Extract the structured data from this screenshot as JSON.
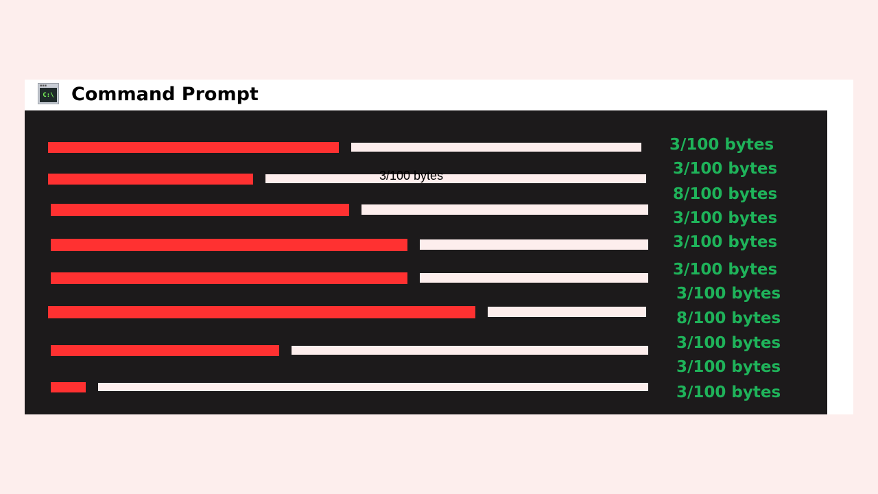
{
  "window": {
    "title": "Command Prompt",
    "icon_text": "C:\\",
    "icon": "terminal-icon"
  },
  "rows": [
    {
      "usage": 3,
      "capacity": 100,
      "fill_fraction": 0.5
    },
    {
      "usage": 3,
      "capacity": 100,
      "fill_fraction": 0.35
    },
    {
      "usage": 8,
      "capacity": 100,
      "fill_fraction": 0.51
    },
    {
      "usage": 3,
      "capacity": 100,
      "fill_fraction": 0.61
    },
    {
      "usage": 3,
      "capacity": 100,
      "fill_fraction": 0.61
    },
    {
      "usage": 3,
      "capacity": 100,
      "fill_fraction": 0.73
    },
    {
      "usage": 8,
      "capacity": 100,
      "fill_fraction": 0.39
    },
    {
      "usage": 3,
      "capacity": 100,
      "fill_fraction": 0.06
    }
  ],
  "labels": [
    "3/100 bytes",
    "3/100 bytes",
    "8/100 bytes",
    "3/100 bytes",
    "3/100 bytes",
    "3/100 bytes",
    "3/100 bytes",
    "8/100 bytes",
    "3/100 bytes",
    "3/100 bytes",
    "3/100 bytes"
  ],
  "overlay_label": "3/100 bytes",
  "colors": {
    "used": "#ff3131",
    "free": "#fdeeed",
    "label": "#1fb35a",
    "console_bg": "#1c1a1b",
    "page_bg": "#fdeeed"
  }
}
